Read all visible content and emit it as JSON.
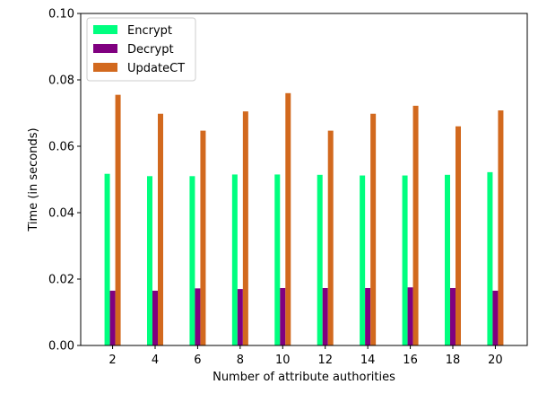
{
  "chart_data": {
    "type": "bar",
    "title": "",
    "xlabel": "Number of attribute authorities",
    "ylabel": "Time (in seconds)",
    "categories": [
      "2",
      "4",
      "6",
      "8",
      "10",
      "12",
      "14",
      "16",
      "18",
      "20"
    ],
    "ylim": [
      0,
      0.1
    ],
    "yticks": [
      "0.00",
      "0.02",
      "0.04",
      "0.06",
      "0.08",
      "0.10"
    ],
    "grid": false,
    "legend_position": "top-left",
    "series": [
      {
        "name": "Encrypt",
        "color": "#00ff7f",
        "values": [
          0.0517,
          0.051,
          0.051,
          0.0515,
          0.0515,
          0.0514,
          0.0512,
          0.0512,
          0.0514,
          0.0522
        ]
      },
      {
        "name": "Decrypt",
        "color": "#800080",
        "values": [
          0.0165,
          0.0165,
          0.0172,
          0.017,
          0.0173,
          0.0173,
          0.0173,
          0.0175,
          0.0173,
          0.0165
        ]
      },
      {
        "name": "UpdateCT",
        "color": "#d2691e",
        "values": [
          0.0755,
          0.0698,
          0.0647,
          0.0705,
          0.076,
          0.0647,
          0.0698,
          0.0722,
          0.066,
          0.0708
        ]
      }
    ]
  }
}
